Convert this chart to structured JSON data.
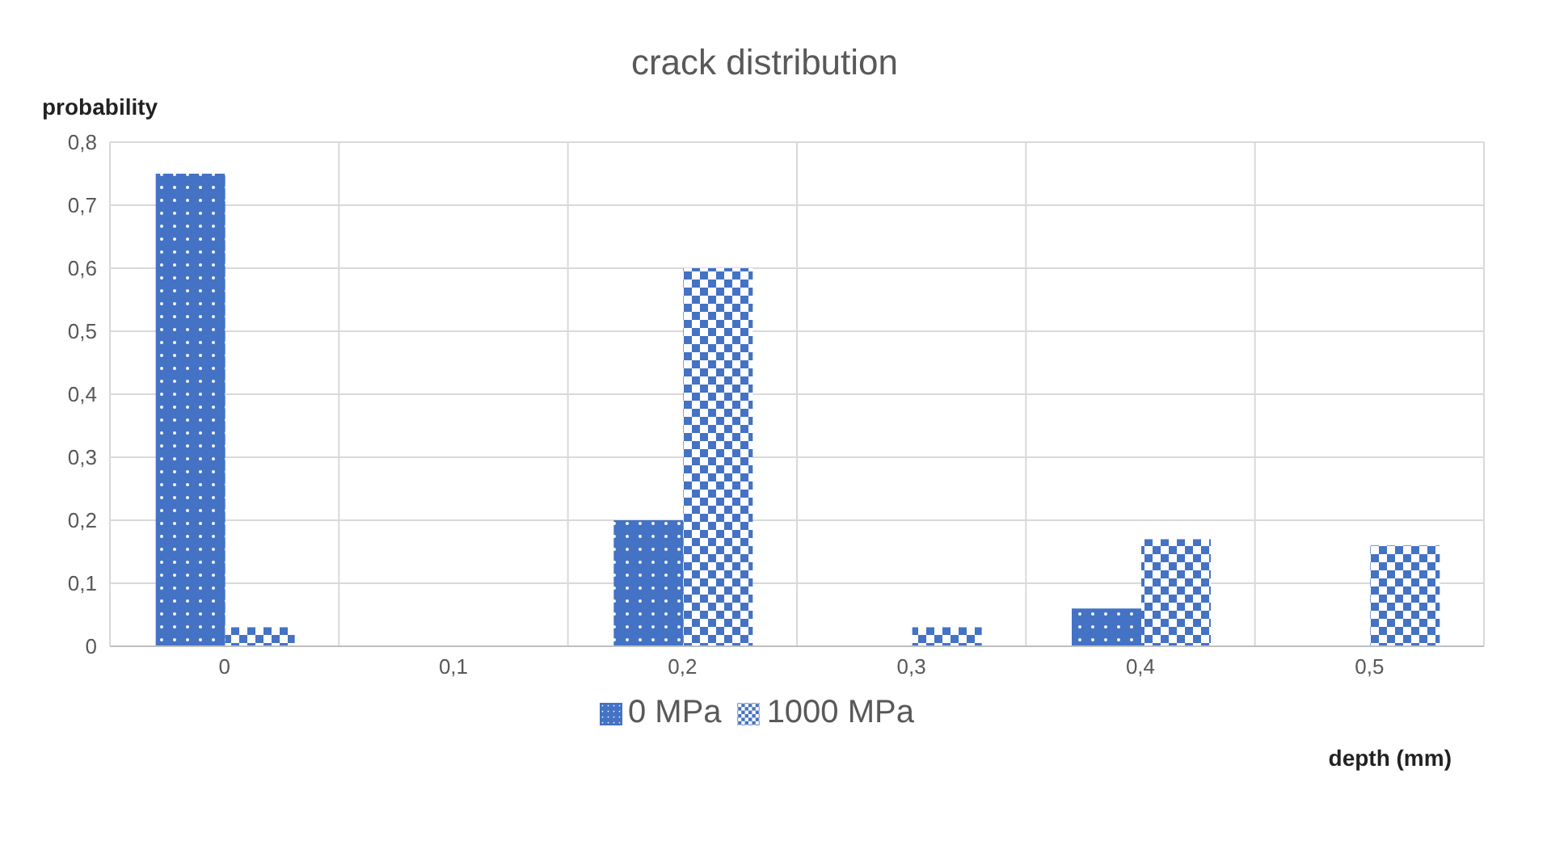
{
  "chart_data": {
    "type": "bar",
    "title": "crack distribution",
    "xlabel": "depth (mm)",
    "ylabel": "probability",
    "categories": [
      "0",
      "0,1",
      "0,2",
      "0,3",
      "0,4",
      "0,5"
    ],
    "series": [
      {
        "name": "0 MPa",
        "color": "#4472c4",
        "values": [
          0.75,
          0,
          0.2,
          0,
          0.06,
          0
        ]
      },
      {
        "name": "1000 MPa",
        "color": "#4472c4",
        "values": [
          0.03,
          0,
          0.6,
          0.03,
          0.17,
          0.16
        ]
      }
    ],
    "ylim": [
      0,
      0.8
    ],
    "yticks": [
      0,
      {
        "value": 0.1,
        "label": "0,1"
      },
      {
        "value": 0.2,
        "label": "0,2"
      },
      {
        "value": 0.3,
        "label": "0,3"
      },
      {
        "value": 0.4,
        "label": "0,4"
      },
      {
        "value": 0.5,
        "label": "0,5"
      },
      {
        "value": 0.6,
        "label": "0,6"
      },
      {
        "value": 0.7,
        "label": "0,7"
      },
      {
        "value": 0.8,
        "label": "0,8"
      }
    ],
    "grid": true,
    "legend": "bottom"
  }
}
